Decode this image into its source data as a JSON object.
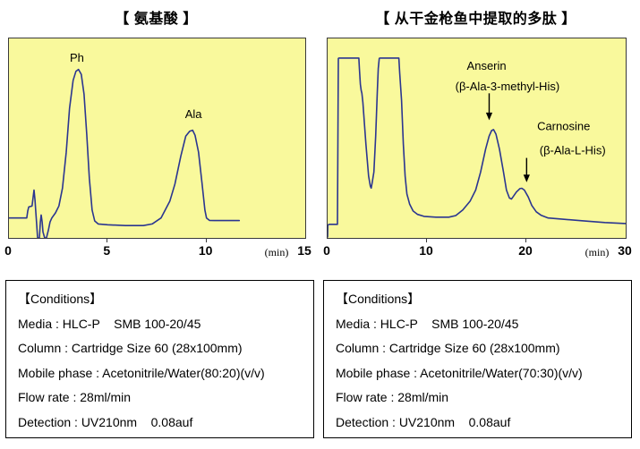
{
  "colors": {
    "page_bg": "#ffffff",
    "panel_bg": "#f9f99c",
    "trace": "#2b3690",
    "annotation": "#000000"
  },
  "chart_data": [
    {
      "type": "line",
      "title": "【 氨基酸 】",
      "xlabel": "(min)",
      "ylabel": "",
      "x_tick_labels": [
        "0",
        "5",
        "10",
        "15"
      ],
      "x_tick_values": [
        0,
        5,
        10,
        15
      ],
      "xlim": [
        0,
        15
      ],
      "ylim": [
        0,
        1
      ],
      "grid": false,
      "legend": "none",
      "peaks": [
        {
          "label": "Ph",
          "retention_min": 3.5
        },
        {
          "label": "Ala",
          "retention_min": 9.3
        }
      ],
      "labels": [
        {
          "text": "Ph",
          "x": 3.44,
          "v": 0.883
        },
        {
          "text": "Ala",
          "x": 9.34,
          "v": 0.6
        }
      ],
      "annotations": [],
      "series": [
        {
          "name": "UV 210nm trace",
          "points": [
            [
              0,
              0.1
            ],
            [
              0.45,
              0.1
            ],
            [
              0.9,
              0.1
            ],
            [
              0.95,
              0.135
            ],
            [
              1.0,
              0.155
            ],
            [
              1.17,
              0.16
            ],
            [
              1.22,
              0.2
            ],
            [
              1.27,
              0.24
            ],
            [
              1.32,
              0.19
            ],
            [
              1.36,
              0.13
            ],
            [
              1.41,
              0.06
            ],
            [
              1.45,
              0
            ],
            [
              1.54,
              0
            ],
            [
              1.59,
              0.08
            ],
            [
              1.63,
              0.115
            ],
            [
              1.68,
              0.08
            ],
            [
              1.72,
              0.03
            ],
            [
              1.81,
              0
            ],
            [
              1.9,
              0
            ],
            [
              2.0,
              0.04
            ],
            [
              2.08,
              0.08
            ],
            [
              2.17,
              0.1
            ],
            [
              2.35,
              0.125
            ],
            [
              2.53,
              0.16
            ],
            [
              2.71,
              0.25
            ],
            [
              2.9,
              0.43
            ],
            [
              3.07,
              0.65
            ],
            [
              3.25,
              0.79
            ],
            [
              3.39,
              0.835
            ],
            [
              3.52,
              0.845
            ],
            [
              3.66,
              0.82
            ],
            [
              3.8,
              0.72
            ],
            [
              3.94,
              0.52
            ],
            [
              4.07,
              0.3
            ],
            [
              4.21,
              0.14
            ],
            [
              4.34,
              0.085
            ],
            [
              4.52,
              0.07
            ],
            [
              5.0,
              0.066
            ],
            [
              5.9,
              0.062
            ],
            [
              6.8,
              0.062
            ],
            [
              7.25,
              0.07
            ],
            [
              7.7,
              0.1
            ],
            [
              8.15,
              0.185
            ],
            [
              8.4,
              0.27
            ],
            [
              8.7,
              0.41
            ],
            [
              8.95,
              0.51
            ],
            [
              9.15,
              0.535
            ],
            [
              9.3,
              0.54
            ],
            [
              9.42,
              0.515
            ],
            [
              9.6,
              0.43
            ],
            [
              9.78,
              0.27
            ],
            [
              9.92,
              0.14
            ],
            [
              10.0,
              0.1
            ],
            [
              10.15,
              0.088
            ],
            [
              10.4,
              0.087
            ],
            [
              11.0,
              0.087
            ],
            [
              11.66,
              0.087
            ]
          ]
        }
      ]
    },
    {
      "type": "line",
      "title": "【 从干金枪鱼中提取的多肽 】",
      "xlabel": "(min)",
      "ylabel": "",
      "x_tick_labels": [
        "0",
        "10",
        "20",
        "30"
      ],
      "x_tick_values": [
        0,
        10,
        20,
        30
      ],
      "xlim": [
        0,
        30
      ],
      "ylim": [
        0,
        1
      ],
      "grid": false,
      "legend": "none",
      "peaks": [
        {
          "label": "Anserin (β-Ala-3-methyl-His)",
          "retention_min": 16.6
        },
        {
          "label": "Carnosine (β-Ala-L-His)",
          "retention_min": 19.6
        }
      ],
      "labels": [
        {
          "text": "Anserin",
          "x": 16.0,
          "v": 0.842
        },
        {
          "text": "(β-Ala-3-methyl-His)",
          "x": 18.1,
          "v": 0.739
        },
        {
          "text": "Carnosine",
          "x": 23.76,
          "v": 0.541
        },
        {
          "text": "(β-Ala-L-His)",
          "x": 24.66,
          "v": 0.419
        }
      ],
      "annotations": [
        {
          "type": "down-arrow",
          "x": 16.26,
          "v_from": 0.725,
          "v_to": 0.59
        },
        {
          "type": "down-arrow",
          "x": 20.03,
          "v_from": 0.401,
          "v_to": 0.279
        }
      ],
      "series": [
        {
          "name": "UV 210nm trace",
          "points": [
            [
              0,
              0.005
            ],
            [
              0.02,
              0.065
            ],
            [
              0.2,
              0.068
            ],
            [
              0.99,
              0.068
            ],
            [
              1.03,
              0.4
            ],
            [
              1.06,
              0.75
            ],
            [
              1.08,
              0.9
            ],
            [
              1.15,
              0.902
            ],
            [
              3.14,
              0.902
            ],
            [
              3.2,
              0.85
            ],
            [
              3.3,
              0.77
            ],
            [
              3.38,
              0.74
            ],
            [
              3.45,
              0.725
            ],
            [
              3.55,
              0.68
            ],
            [
              3.86,
              0.47
            ],
            [
              4.13,
              0.31
            ],
            [
              4.3,
              0.26
            ],
            [
              4.39,
              0.25
            ],
            [
              4.5,
              0.28
            ],
            [
              4.66,
              0.33
            ],
            [
              4.84,
              0.51
            ],
            [
              5.0,
              0.73
            ],
            [
              5.1,
              0.85
            ],
            [
              5.2,
              0.9
            ],
            [
              5.3,
              0.902
            ],
            [
              7.17,
              0.902
            ],
            [
              7.25,
              0.83
            ],
            [
              7.44,
              0.69
            ],
            [
              7.62,
              0.47
            ],
            [
              7.8,
              0.31
            ],
            [
              7.98,
              0.22
            ],
            [
              8.25,
              0.17
            ],
            [
              8.6,
              0.135
            ],
            [
              9.05,
              0.118
            ],
            [
              9.7,
              0.108
            ],
            [
              10.9,
              0.104
            ],
            [
              12.2,
              0.104
            ],
            [
              12.9,
              0.112
            ],
            [
              13.6,
              0.14
            ],
            [
              14.35,
              0.185
            ],
            [
              14.9,
              0.24
            ],
            [
              15.4,
              0.33
            ],
            [
              15.9,
              0.445
            ],
            [
              16.25,
              0.51
            ],
            [
              16.5,
              0.538
            ],
            [
              16.7,
              0.543
            ],
            [
              16.95,
              0.52
            ],
            [
              17.3,
              0.445
            ],
            [
              17.7,
              0.33
            ],
            [
              18.0,
              0.24
            ],
            [
              18.3,
              0.2
            ],
            [
              18.5,
              0.195
            ],
            [
              18.65,
              0.205
            ],
            [
              19.0,
              0.23
            ],
            [
              19.35,
              0.247
            ],
            [
              19.55,
              0.249
            ],
            [
              19.8,
              0.24
            ],
            [
              20.2,
              0.205
            ],
            [
              20.55,
              0.163
            ],
            [
              21.0,
              0.131
            ],
            [
              21.5,
              0.113
            ],
            [
              22.2,
              0.1
            ],
            [
              23.4,
              0.095
            ],
            [
              25.6,
              0.086
            ],
            [
              27.9,
              0.077
            ],
            [
              30.0,
              0.072
            ]
          ]
        }
      ]
    }
  ],
  "conditions": [
    {
      "header": "【Conditions】",
      "lines": [
        "Media : HLC-P    SMB 100-20/45",
        "Column : Cartridge Size 60 (28x100mm)",
        "Mobile phase : Acetonitrile/Water(80:20)(v/v)",
        "Flow rate : 28ml/min",
        "Detection : UV210nm    0.08auf"
      ]
    },
    {
      "header": "【Conditions】",
      "lines": [
        "Media : HLC-P    SMB 100-20/45",
        "Column : Cartridge Size 60 (28x100mm)",
        "Mobile phase : Acetonitrile/Water(70:30)(v/v)",
        "Flow rate : 28ml/min",
        "Detection : UV210nm    0.08auf"
      ]
    }
  ]
}
